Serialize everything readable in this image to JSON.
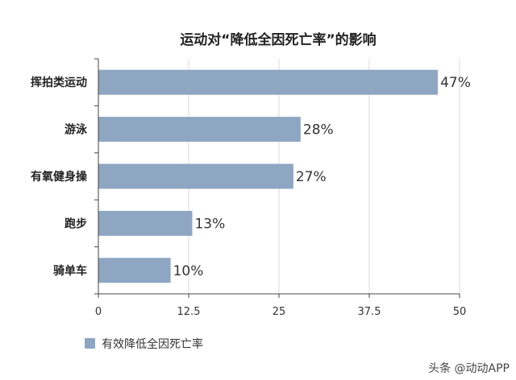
{
  "chart_data": {
    "type": "bar",
    "orientation": "horizontal",
    "title": "运动对“降低全因死亡率”的影响",
    "categories": [
      "挥拍类运动",
      "游泳",
      "有氧健身操",
      "跑步",
      "骑单车"
    ],
    "series": [
      {
        "name": "有效降低全因死亡率",
        "values": [
          47,
          28,
          27,
          13,
          10
        ]
      }
    ],
    "data_labels": [
      "47%",
      "28%",
      "27%",
      "13%",
      "10%"
    ],
    "xlim": [
      0,
      50
    ],
    "xticks": [
      0,
      12.5,
      25,
      37.5,
      50
    ],
    "xtick_labels": [
      "0",
      "12.5",
      "25",
      "37.5",
      "50"
    ],
    "grid": true,
    "legend_position": "bottom-left",
    "bar_color": "#8ea6c2"
  },
  "watermark": "头条 @动动APP"
}
